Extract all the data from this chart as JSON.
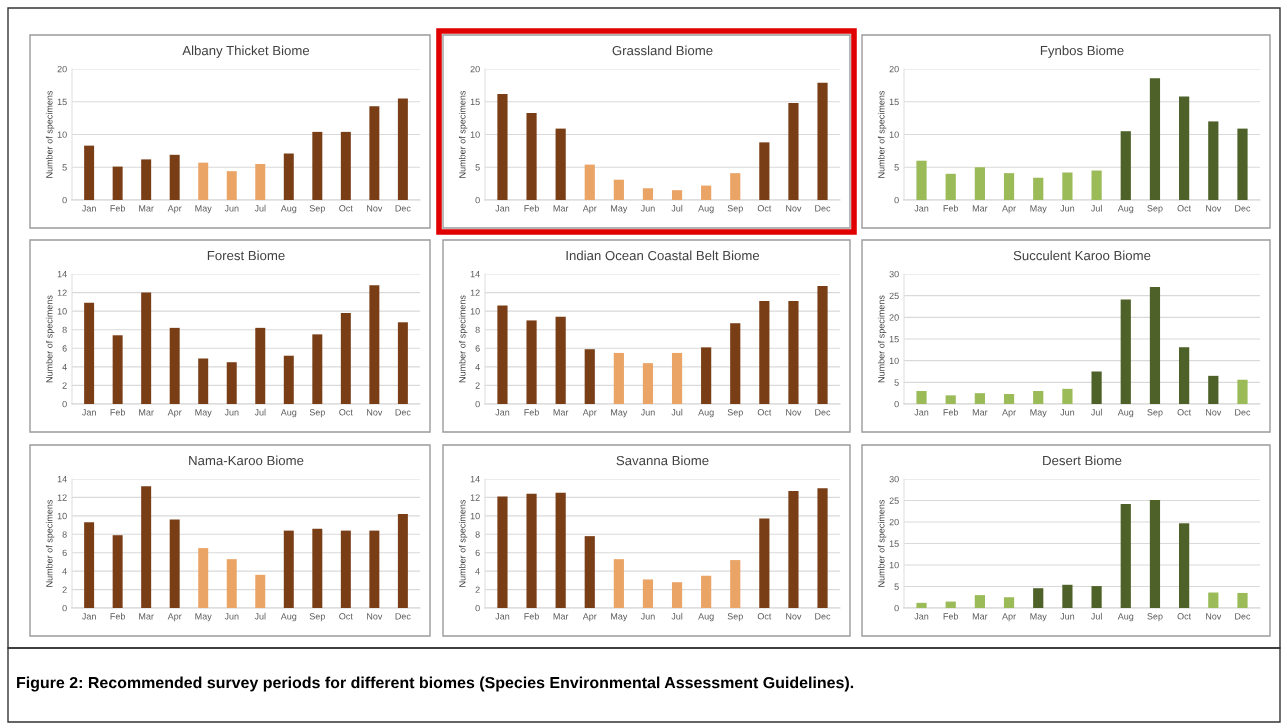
{
  "chart_data": [
    {
      "type": "bar",
      "title": "Albany Thicket Biome",
      "ylabel": "Number of specimens",
      "categories": [
        "Jan",
        "Feb",
        "Mar",
        "Apr",
        "May",
        "Jun",
        "Jul",
        "Aug",
        "Sep",
        "Oct",
        "Nov",
        "Dec"
      ],
      "values": [
        8.3,
        5.1,
        6.2,
        6.9,
        5.7,
        4.4,
        5.5,
        7.1,
        10.4,
        10.4,
        14.3,
        15.5
      ],
      "colors": [
        "#7a3e17",
        "#7a3e17",
        "#7a3e17",
        "#7a3e17",
        "#e9a466",
        "#e9a466",
        "#e9a466",
        "#7a3e17",
        "#7a3e17",
        "#7a3e17",
        "#7a3e17",
        "#7a3e17"
      ],
      "ylim": [
        0,
        20
      ],
      "yticks": [
        0,
        5,
        10,
        15,
        20
      ],
      "grid": "y"
    },
    {
      "type": "bar",
      "title": "Grassland Biome",
      "ylabel": "Number of specimens",
      "categories": [
        "Jan",
        "Feb",
        "Mar",
        "Apr",
        "May",
        "Jun",
        "Jul",
        "Aug",
        "Sep",
        "Oct",
        "Nov",
        "Dec"
      ],
      "values": [
        16.2,
        13.3,
        10.9,
        5.4,
        3.1,
        1.8,
        1.5,
        2.2,
        4.1,
        8.8,
        14.8,
        17.9
      ],
      "colors": [
        "#7a3e17",
        "#7a3e17",
        "#7a3e17",
        "#e9a466",
        "#e9a466",
        "#e9a466",
        "#e9a466",
        "#e9a466",
        "#e9a466",
        "#7a3e17",
        "#7a3e17",
        "#7a3e17"
      ],
      "ylim": [
        0,
        20
      ],
      "yticks": [
        0,
        5,
        10,
        15,
        20
      ],
      "grid": "y"
    },
    {
      "type": "bar",
      "title": "Fynbos Biome",
      "ylabel": "Number of specimens",
      "categories": [
        "Jan",
        "Feb",
        "Mar",
        "Apr",
        "May",
        "Jun",
        "Jul",
        "Aug",
        "Sep",
        "Oct",
        "Nov",
        "Dec"
      ],
      "values": [
        6,
        4,
        5,
        4.1,
        3.4,
        4.2,
        4.5,
        10.5,
        18.6,
        15.8,
        12,
        10.9
      ],
      "colors": [
        "#9bbb59",
        "#9bbb59",
        "#9bbb59",
        "#9bbb59",
        "#9bbb59",
        "#9bbb59",
        "#9bbb59",
        "#4e6128",
        "#4e6128",
        "#4e6128",
        "#4e6128",
        "#4e6128"
      ],
      "ylim": [
        0,
        20
      ],
      "yticks": [
        0,
        5,
        10,
        15,
        20
      ],
      "grid": "y"
    },
    {
      "type": "bar",
      "title": "Forest Biome",
      "ylabel": "Number of specimens",
      "categories": [
        "Jan",
        "Feb",
        "Mar",
        "Apr",
        "May",
        "Jun",
        "Jul",
        "Aug",
        "Sep",
        "Oct",
        "Nov",
        "Dec"
      ],
      "values": [
        10.9,
        7.4,
        12,
        8.2,
        4.9,
        4.5,
        8.2,
        5.2,
        7.5,
        9.8,
        12.8,
        8.8
      ],
      "colors": [
        "#7a3e17",
        "#7a3e17",
        "#7a3e17",
        "#7a3e17",
        "#7a3e17",
        "#7a3e17",
        "#7a3e17",
        "#7a3e17",
        "#7a3e17",
        "#7a3e17",
        "#7a3e17",
        "#7a3e17"
      ],
      "ylim": [
        0,
        14
      ],
      "yticks": [
        0,
        2,
        4,
        6,
        8,
        10,
        12,
        14
      ],
      "grid": "y"
    },
    {
      "type": "bar",
      "title": "Indian Ocean Coastal Belt Biome",
      "ylabel": "Number of specimens",
      "categories": [
        "Jan",
        "Feb",
        "Mar",
        "Apr",
        "May",
        "Jun",
        "Jul",
        "Aug",
        "Sep",
        "Oct",
        "Nov",
        "Dec"
      ],
      "values": [
        10.6,
        9,
        9.4,
        5.9,
        5.5,
        4.4,
        5.5,
        6.1,
        8.7,
        11.1,
        11.1,
        12.7
      ],
      "colors": [
        "#7a3e17",
        "#7a3e17",
        "#7a3e17",
        "#7a3e17",
        "#e9a466",
        "#e9a466",
        "#e9a466",
        "#7a3e17",
        "#7a3e17",
        "#7a3e17",
        "#7a3e17",
        "#7a3e17"
      ],
      "ylim": [
        0,
        14
      ],
      "yticks": [
        0,
        2,
        4,
        6,
        8,
        10,
        12,
        14
      ],
      "grid": "y"
    },
    {
      "type": "bar",
      "title": "Succulent Karoo Biome",
      "ylabel": "Number of specimens",
      "categories": [
        "Jan",
        "Feb",
        "Mar",
        "Apr",
        "May",
        "Jun",
        "Jul",
        "Aug",
        "Sep",
        "Oct",
        "Nov",
        "Dec"
      ],
      "values": [
        3,
        2,
        2.5,
        2.3,
        3,
        3.5,
        7.5,
        24.1,
        27,
        13.1,
        6.5,
        5.6
      ],
      "colors": [
        "#9bbb59",
        "#9bbb59",
        "#9bbb59",
        "#9bbb59",
        "#9bbb59",
        "#9bbb59",
        "#4e6128",
        "#4e6128",
        "#4e6128",
        "#4e6128",
        "#4e6128",
        "#9bbb59"
      ],
      "ylim": [
        0,
        30
      ],
      "yticks": [
        0,
        5,
        10,
        15,
        20,
        25,
        30
      ],
      "grid": "y"
    },
    {
      "type": "bar",
      "title": "Nama-Karoo Biome",
      "ylabel": "Number of specimens",
      "categories": [
        "Jan",
        "Feb",
        "Mar",
        "Apr",
        "May",
        "Jun",
        "Jul",
        "Aug",
        "Sep",
        "Oct",
        "Nov",
        "Dec"
      ],
      "values": [
        9.3,
        7.9,
        13.2,
        9.6,
        6.5,
        5.3,
        3.6,
        8.4,
        8.6,
        8.4,
        8.4,
        10.2
      ],
      "colors": [
        "#7a3e17",
        "#7a3e17",
        "#7a3e17",
        "#7a3e17",
        "#e9a466",
        "#e9a466",
        "#e9a466",
        "#7a3e17",
        "#7a3e17",
        "#7a3e17",
        "#7a3e17",
        "#7a3e17"
      ],
      "ylim": [
        0,
        14
      ],
      "yticks": [
        0,
        2,
        4,
        6,
        8,
        10,
        12,
        14
      ],
      "grid": "y"
    },
    {
      "type": "bar",
      "title": "Savanna Biome",
      "ylabel": "Number of specimens",
      "categories": [
        "Jan",
        "Feb",
        "Mar",
        "Apr",
        "May",
        "Jun",
        "Jul",
        "Aug",
        "Sep",
        "Oct",
        "Nov",
        "Dec"
      ],
      "values": [
        12.1,
        12.4,
        12.5,
        7.8,
        5.3,
        3.1,
        2.8,
        3.5,
        5.2,
        9.7,
        12.7,
        13
      ],
      "colors": [
        "#7a3e17",
        "#7a3e17",
        "#7a3e17",
        "#7a3e17",
        "#e9a466",
        "#e9a466",
        "#e9a466",
        "#e9a466",
        "#e9a466",
        "#7a3e17",
        "#7a3e17",
        "#7a3e17"
      ],
      "ylim": [
        0,
        14
      ],
      "yticks": [
        0,
        2,
        4,
        6,
        8,
        10,
        12,
        14
      ],
      "grid": "y"
    },
    {
      "type": "bar",
      "title": "Desert Biome",
      "ylabel": "Number of specimens",
      "categories": [
        "Jan",
        "Feb",
        "Mar",
        "Apr",
        "May",
        "Jun",
        "Jul",
        "Aug",
        "Sep",
        "Oct",
        "Nov",
        "Dec"
      ],
      "values": [
        1.2,
        1.5,
        3,
        2.5,
        4.6,
        5.4,
        5.1,
        24.2,
        25.1,
        19.7,
        3.6,
        3.5
      ],
      "colors": [
        "#9bbb59",
        "#9bbb59",
        "#9bbb59",
        "#9bbb59",
        "#4e6128",
        "#4e6128",
        "#4e6128",
        "#4e6128",
        "#4e6128",
        "#4e6128",
        "#9bbb59",
        "#9bbb59"
      ],
      "ylim": [
        0,
        30
      ],
      "yticks": [
        0,
        5,
        10,
        15,
        20,
        25,
        30
      ],
      "grid": "y",
      "annotations": [
        "Figure 2: Recommended survey periods for different biomes (Species Environmental Assessment Guidelines)."
      ]
    }
  ]
}
